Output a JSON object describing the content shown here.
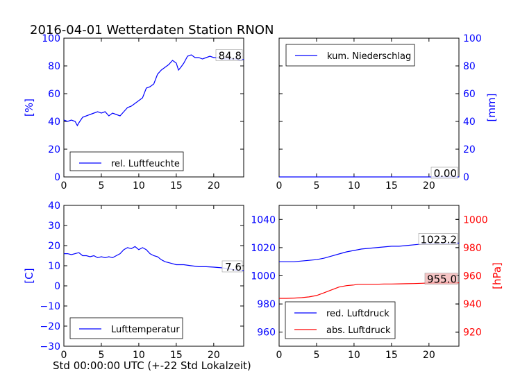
{
  "title": "2016-04-01 Wetterdaten Station RNON",
  "x_caption": "Std 00:00:00 UTC (+-22 Std Lokalzeit)",
  "colors": {
    "axis": "#000000",
    "blue": "#0000ff",
    "red": "#ff0000",
    "label_box_red": "#f4b6b6"
  },
  "chart_data": [
    {
      "id": "humidity",
      "type": "line",
      "xlim": [
        0,
        24
      ],
      "ylim": [
        0,
        100
      ],
      "xticks": [
        "0",
        "5",
        "10",
        "15",
        "20"
      ],
      "yticks": [
        "0",
        "20",
        "40",
        "60",
        "80",
        "100"
      ],
      "ylabel": "[%]",
      "legend_position": "lower-left",
      "last_value_label": "84.8",
      "series": [
        {
          "name": "rel. Luftfeuchte",
          "color": "#0000ff",
          "x": [
            0,
            0.5,
            1,
            1.5,
            1.8,
            2,
            2.5,
            3,
            3.5,
            4,
            4.5,
            5,
            5.5,
            6,
            6.5,
            7,
            7.5,
            8,
            8.5,
            9,
            9.5,
            10,
            10.5,
            11,
            11.5,
            12,
            12.5,
            13,
            13.5,
            14,
            14.5,
            15,
            15.3,
            15.6,
            16,
            16.5,
            17,
            17.5,
            18,
            18.5,
            19,
            19.5,
            20,
            20.5,
            21,
            21.5,
            22,
            22.5,
            23,
            23.5,
            24
          ],
          "y": [
            41,
            40,
            41,
            40,
            37,
            39,
            43,
            44,
            45,
            46,
            47,
            46,
            47,
            44,
            46,
            45,
            44,
            47,
            50,
            51,
            53,
            55,
            57,
            64,
            65,
            67,
            74,
            77,
            79,
            81,
            84,
            82,
            77,
            79,
            82,
            87,
            88,
            86,
            86,
            85,
            86,
            87,
            86,
            86,
            85,
            85,
            85,
            85,
            85,
            84,
            84.8
          ]
        }
      ]
    },
    {
      "id": "precipitation",
      "type": "line",
      "xlim": [
        0,
        24
      ],
      "ylim": [
        0,
        100
      ],
      "xticks": [
        "0",
        "5",
        "10",
        "15",
        "20"
      ],
      "yticks": [
        "0",
        "20",
        "40",
        "60",
        "80",
        "100"
      ],
      "ylabel": "[mm]",
      "legend_position": "upper-left",
      "last_value_label": "0.00",
      "series": [
        {
          "name": "kum. Niederschlag",
          "color": "#0000ff",
          "x": [
            0,
            24
          ],
          "y": [
            0,
            0
          ]
        }
      ]
    },
    {
      "id": "temperature",
      "type": "line",
      "xlim": [
        0,
        24
      ],
      "ylim": [
        -30,
        40
      ],
      "xticks": [
        "0",
        "5",
        "10",
        "15",
        "20"
      ],
      "yticks": [
        "−30",
        "−20",
        "−10",
        "0",
        "10",
        "20",
        "30",
        "40"
      ],
      "ylabel": "[C]",
      "legend_position": "lower-left",
      "last_value_label": "7.6",
      "series": [
        {
          "name": "Lufttemperatur",
          "color": "#0000ff",
          "x": [
            0,
            0.5,
            1,
            1.5,
            2,
            2.5,
            3,
            3.5,
            4,
            4.5,
            5,
            5.5,
            6,
            6.5,
            7,
            7.5,
            8,
            8.5,
            9,
            9.5,
            10,
            10.5,
            11,
            11.5,
            12,
            12.5,
            13,
            13.5,
            14,
            15,
            16,
            17,
            18,
            19,
            20,
            21,
            22,
            23,
            24
          ],
          "y": [
            16,
            16,
            15.5,
            16,
            16.5,
            15,
            15,
            14.5,
            15,
            14,
            14.5,
            14,
            14.5,
            14,
            15,
            16,
            18,
            19,
            18.5,
            19.5,
            18,
            19,
            18,
            16,
            15,
            14.5,
            13,
            12,
            11.5,
            10.5,
            10.5,
            10,
            9.5,
            9.5,
            9.3,
            9,
            8.5,
            7.8,
            7.6
          ]
        }
      ]
    },
    {
      "id": "pressure",
      "type": "line",
      "xlim": [
        0,
        24
      ],
      "ylim_left": [
        950,
        1050
      ],
      "ylim_right": [
        910,
        1010
      ],
      "xticks": [
        "0",
        "5",
        "10",
        "15",
        "20"
      ],
      "yticks_left": [
        "960",
        "980",
        "1000",
        "1020",
        "1040"
      ],
      "yticks_right": [
        "920",
        "940",
        "960",
        "980",
        "1000"
      ],
      "ylabel_right": "[hPa]",
      "legend_position": "lower-left",
      "series": [
        {
          "name": "red. Luftdruck",
          "color": "#0000ff",
          "axis": "left",
          "last_value_label": "1023.2",
          "x": [
            0,
            2,
            3,
            4,
            5,
            6,
            7,
            8,
            9,
            10,
            11,
            12,
            13,
            14,
            15,
            16,
            17,
            18,
            19,
            20,
            21,
            22,
            23,
            24
          ],
          "y": [
            1010,
            1010,
            1010.5,
            1011,
            1011.5,
            1012.5,
            1014,
            1015.5,
            1017,
            1018,
            1019,
            1019.5,
            1020,
            1020.5,
            1021,
            1021,
            1021.5,
            1022,
            1022.5,
            1022.8,
            1023,
            1023,
            1023.2,
            1023.2
          ]
        },
        {
          "name": "abs. Luftdruck",
          "color": "#ff0000",
          "axis": "right",
          "last_value_label": "955.0",
          "x": [
            0,
            1,
            2,
            3,
            4,
            5,
            5.5,
            6,
            7,
            8,
            9,
            10,
            10.5,
            11,
            12,
            13,
            14,
            15,
            16,
            17,
            18,
            19,
            20,
            21,
            22,
            23,
            24
          ],
          "y": [
            944,
            944,
            944.2,
            944.5,
            945,
            946,
            947,
            948,
            950,
            952,
            953,
            953.5,
            954,
            954,
            954,
            954,
            954.2,
            954.2,
            954.3,
            954.4,
            954.5,
            954.7,
            954.9,
            955,
            955,
            955,
            955
          ]
        }
      ]
    }
  ]
}
